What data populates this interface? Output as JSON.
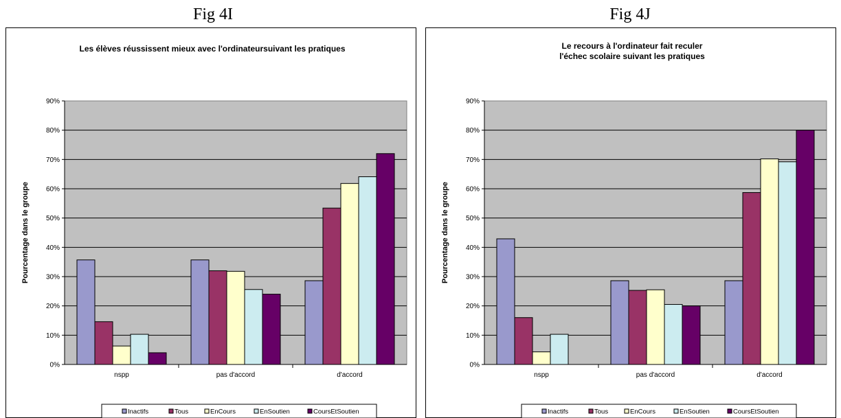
{
  "figures": [
    {
      "label": "Fig 4I"
    },
    {
      "label": "Fig 4J"
    }
  ],
  "chart_data": [
    {
      "type": "bar",
      "title": [
        "Les élèves réussissent mieux avec l'ordinateursuivant les pratiques"
      ],
      "ylabel": "Pourcentage dans le groupe",
      "xlabel": "",
      "categories": [
        "nspp",
        "pas d'accord",
        "d'accord"
      ],
      "yticks": [
        "0%",
        "10%",
        "20%",
        "30%",
        "40%",
        "50%",
        "60%",
        "70%",
        "80%",
        "90%"
      ],
      "ylim": [
        0,
        90
      ],
      "grid": true,
      "legend_position": "bottom",
      "series": [
        {
          "name": "Inactifs",
          "color": "#9999cc",
          "values": [
            35.7,
            35.7,
            28.6
          ]
        },
        {
          "name": "Tous",
          "color": "#993366",
          "values": [
            14.6,
            32.0,
            53.4
          ]
        },
        {
          "name": "EnCours",
          "color": "#ffffcc",
          "values": [
            6.3,
            31.8,
            61.8
          ]
        },
        {
          "name": "EnSoutien",
          "color": "#ccecf0",
          "values": [
            10.3,
            25.6,
            64.1
          ]
        },
        {
          "name": "CoursEtSoutien",
          "color": "#660066",
          "values": [
            4.0,
            24.0,
            72.0
          ]
        }
      ]
    },
    {
      "type": "bar",
      "title": [
        "Le recours à l'ordinateur fait reculer",
        "l'échec scolaire suivant les pratiques"
      ],
      "ylabel": "Pourcentage dans le groupe",
      "xlabel": "",
      "categories": [
        "nspp",
        "pas d'accord",
        "d'accord"
      ],
      "yticks": [
        "0%",
        "10%",
        "20%",
        "30%",
        "40%",
        "50%",
        "60%",
        "70%",
        "80%",
        "90%"
      ],
      "ylim": [
        0,
        90
      ],
      "grid": true,
      "legend_position": "bottom",
      "series": [
        {
          "name": "Inactifs",
          "color": "#9999cc",
          "values": [
            42.9,
            28.6,
            28.6
          ]
        },
        {
          "name": "Tous",
          "color": "#993366",
          "values": [
            16.0,
            25.3,
            58.7
          ]
        },
        {
          "name": "EnCours",
          "color": "#ffffcc",
          "values": [
            4.3,
            25.5,
            70.2
          ]
        },
        {
          "name": "EnSoutien",
          "color": "#ccecf0",
          "values": [
            10.3,
            20.5,
            69.2
          ]
        },
        {
          "name": "CoursEtSoutien",
          "color": "#660066",
          "values": [
            0,
            20.0,
            80.0
          ]
        }
      ]
    }
  ]
}
